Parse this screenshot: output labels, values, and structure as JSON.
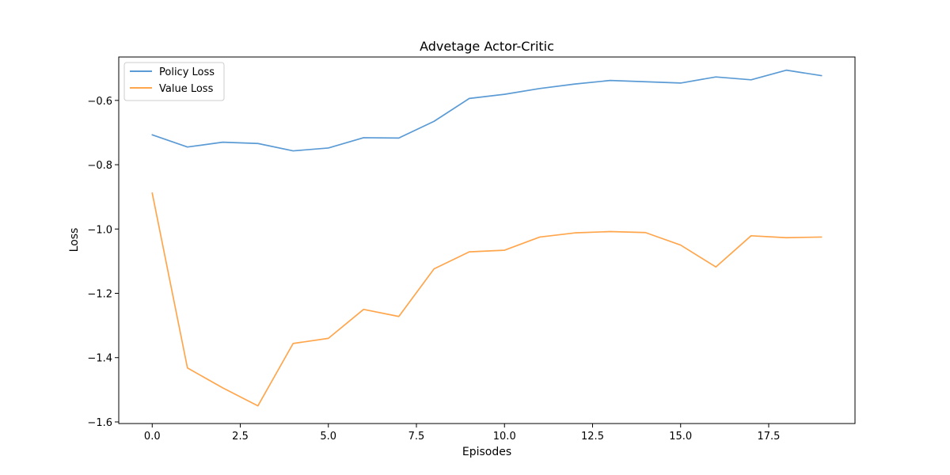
{
  "chart_data": {
    "type": "line",
    "title": "Advetage Actor-Critic",
    "xlabel": "Episodes",
    "ylabel": "Loss",
    "x": [
      0,
      1,
      2,
      3,
      4,
      5,
      6,
      7,
      8,
      9,
      10,
      11,
      12,
      13,
      14,
      15,
      16,
      17,
      18,
      19
    ],
    "xlim": [
      -0.95,
      19.95
    ],
    "ylim": [
      -1.605,
      -0.465
    ],
    "xticks": [
      0.0,
      2.5,
      5.0,
      7.5,
      10.0,
      12.5,
      15.0,
      17.5
    ],
    "xtick_labels": [
      "0.0",
      "2.5",
      "5.0",
      "7.5",
      "10.0",
      "12.5",
      "15.0",
      "17.5"
    ],
    "yticks": [
      -1.6,
      -1.4,
      -1.2,
      -1.0,
      -0.8,
      -0.6
    ],
    "ytick_labels": [
      "−1.6",
      "−1.4",
      "−1.2",
      "−1.0",
      "−0.8",
      "−0.6"
    ],
    "grid": false,
    "legend_position": "top-left",
    "series": [
      {
        "name": "Policy Loss",
        "color": "#5b9bd5",
        "values": [
          -0.707,
          -0.745,
          -0.73,
          -0.734,
          -0.757,
          -0.748,
          -0.716,
          -0.717,
          -0.665,
          -0.594,
          -0.581,
          -0.563,
          -0.549,
          -0.538,
          -0.542,
          -0.546,
          -0.527,
          -0.536,
          -0.506,
          -0.523
        ]
      },
      {
        "name": "Value Loss",
        "color": "#ffa64d",
        "values": [
          -0.888,
          -1.432,
          -1.494,
          -1.55,
          -1.356,
          -1.34,
          -1.25,
          -1.272,
          -1.124,
          -1.071,
          -1.066,
          -1.025,
          -1.012,
          -1.008,
          -1.011,
          -1.05,
          -1.118,
          -1.021,
          -1.027,
          -1.025
        ]
      }
    ]
  }
}
